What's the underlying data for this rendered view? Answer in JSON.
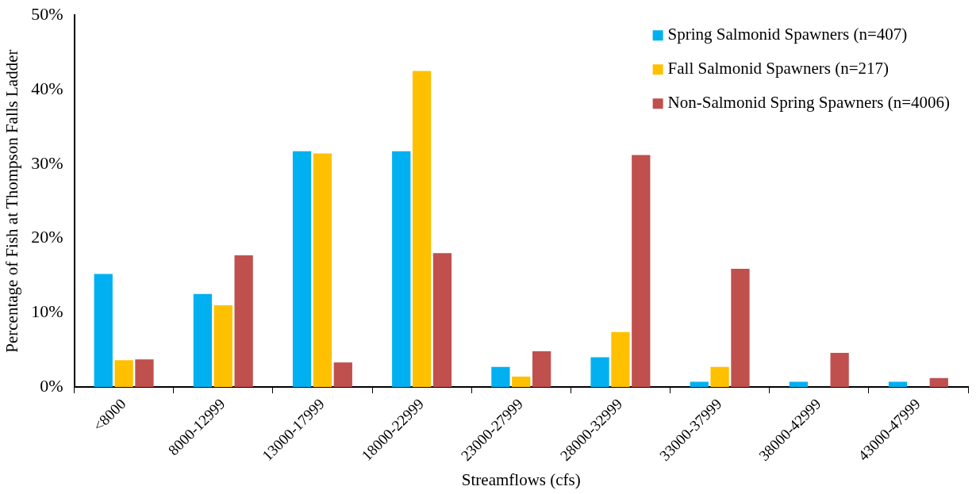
{
  "chart_data": {
    "type": "bar",
    "xlabel": "Streamflows (cfs)",
    "ylabel": "Percentage of Fish at Thompson Falls Ladder",
    "categories": [
      "<8000",
      "8000-12999",
      "13000-17999",
      "18000-22999",
      "23000-27999",
      "28000-32999",
      "33000-37999",
      "38000-42999",
      "43000-47999"
    ],
    "series": [
      {
        "name": "Spring Salmonid Spawners (n=407)",
        "color": "#00b0f0",
        "values": [
          15.2,
          12.5,
          31.7,
          31.7,
          2.7,
          4.0,
          0.7,
          0.7,
          0.7
        ]
      },
      {
        "name": "Fall Salmonid Spawners (n=217)",
        "color": "#ffc000",
        "values": [
          3.6,
          11.0,
          31.4,
          42.5,
          1.4,
          7.4,
          2.7,
          0,
          0
        ]
      },
      {
        "name": "Non-Salmonid Spring Spawners (n=4006)",
        "color": "#c0504d",
        "values": [
          3.7,
          17.7,
          3.3,
          18.0,
          4.8,
          31.2,
          15.9,
          4.6,
          1.2
        ]
      }
    ],
    "ylim": [
      0,
      50
    ],
    "yticks": [
      {
        "value": 0,
        "label": "0%"
      },
      {
        "value": 10,
        "label": "10%"
      },
      {
        "value": 20,
        "label": "20%"
      },
      {
        "value": 30,
        "label": "30%"
      },
      {
        "value": 40,
        "label": "40%"
      },
      {
        "value": 50,
        "label": "50%"
      }
    ],
    "grid": false,
    "legend": "top right"
  }
}
